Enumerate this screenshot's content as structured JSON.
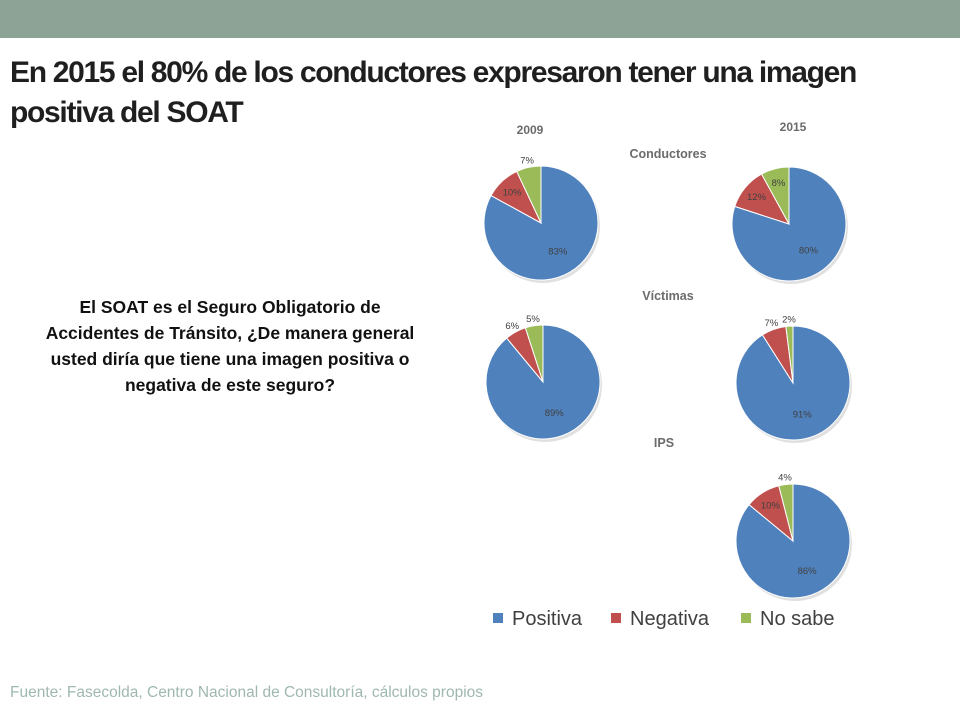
{
  "slide": {
    "title": "En 2015 el 80% de los conductores expresaron tener una imagen positiva del SOAT",
    "question": "El SOAT es el Seguro Obligatorio de Accidentes de Tránsito, ¿De manera general usted diría que tiene una imagen positiva o negativa de este seguro?",
    "source": "Fuente: Fasecolda, Centro Nacional de Consultoría, cálculos propios"
  },
  "colors": {
    "topbar": "#8da395",
    "positiva": "#4f81bd",
    "negativa": "#c0504d",
    "no_sabe": "#9bbb59"
  },
  "chart_data": {
    "type": "pie",
    "years": [
      "2009",
      "2015"
    ],
    "groups": [
      "Conductores",
      "Víctimas",
      "IPS"
    ],
    "legend": [
      "Positiva",
      "Negativa",
      "No sabe"
    ],
    "legend_position": "bottom",
    "pies": [
      {
        "group": "Conductores",
        "year": "2009",
        "values": [
          83,
          10,
          7
        ],
        "labels": [
          "83%",
          "10%",
          "7%"
        ]
      },
      {
        "group": "Conductores",
        "year": "2015",
        "values": [
          80,
          12,
          8
        ],
        "labels": [
          "80%",
          "12%",
          "8%"
        ]
      },
      {
        "group": "Víctimas",
        "year": "2009",
        "values": [
          89,
          6,
          5
        ],
        "labels": [
          "89%",
          "6%",
          "5%"
        ]
      },
      {
        "group": "Víctimas",
        "year": "2015",
        "values": [
          91,
          7,
          2
        ],
        "labels": [
          "91%",
          "7%",
          "2%"
        ]
      },
      {
        "group": "IPS",
        "year": "2015",
        "values": [
          86,
          10,
          4
        ],
        "labels": [
          "86%",
          "10%",
          "4%"
        ]
      }
    ]
  }
}
